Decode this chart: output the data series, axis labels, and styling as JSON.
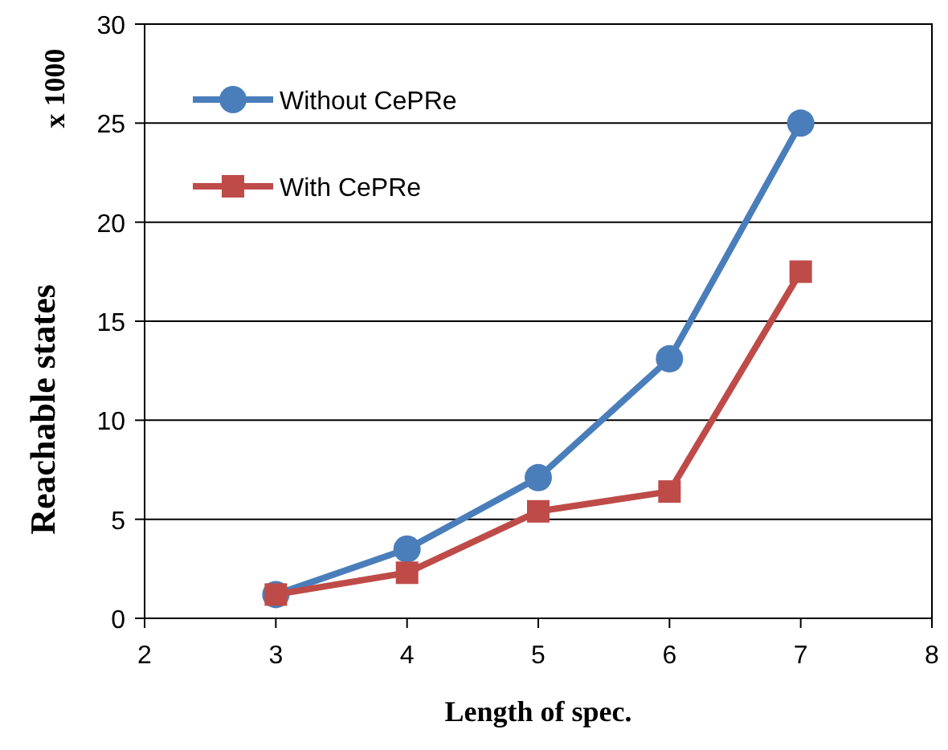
{
  "chart_data": {
    "type": "line",
    "xlabel": "Length of spec.",
    "ylabel": "Reachable states",
    "annotations": [
      "x 1000"
    ],
    "x": [
      3,
      4,
      5,
      6,
      7
    ],
    "series": [
      {
        "name": "Without CePRe",
        "color": "#4a7ebb",
        "values": [
          1.2,
          3.5,
          7.1,
          13.1,
          25
        ],
        "marker": "circle"
      },
      {
        "name": "With CePRe",
        "color": "#be4b48",
        "values": [
          1.2,
          2.3,
          5.4,
          6.4,
          17.5
        ],
        "marker": "square"
      }
    ],
    "xlim": [
      2,
      8
    ],
    "xticks": [
      2,
      3,
      4,
      5,
      6,
      7,
      8
    ],
    "ylim": [
      0,
      30
    ],
    "yticks": [
      0,
      5,
      10,
      15,
      20,
      25,
      30
    ],
    "grid": "y",
    "legend": "top left",
    "line_style": "solid"
  }
}
